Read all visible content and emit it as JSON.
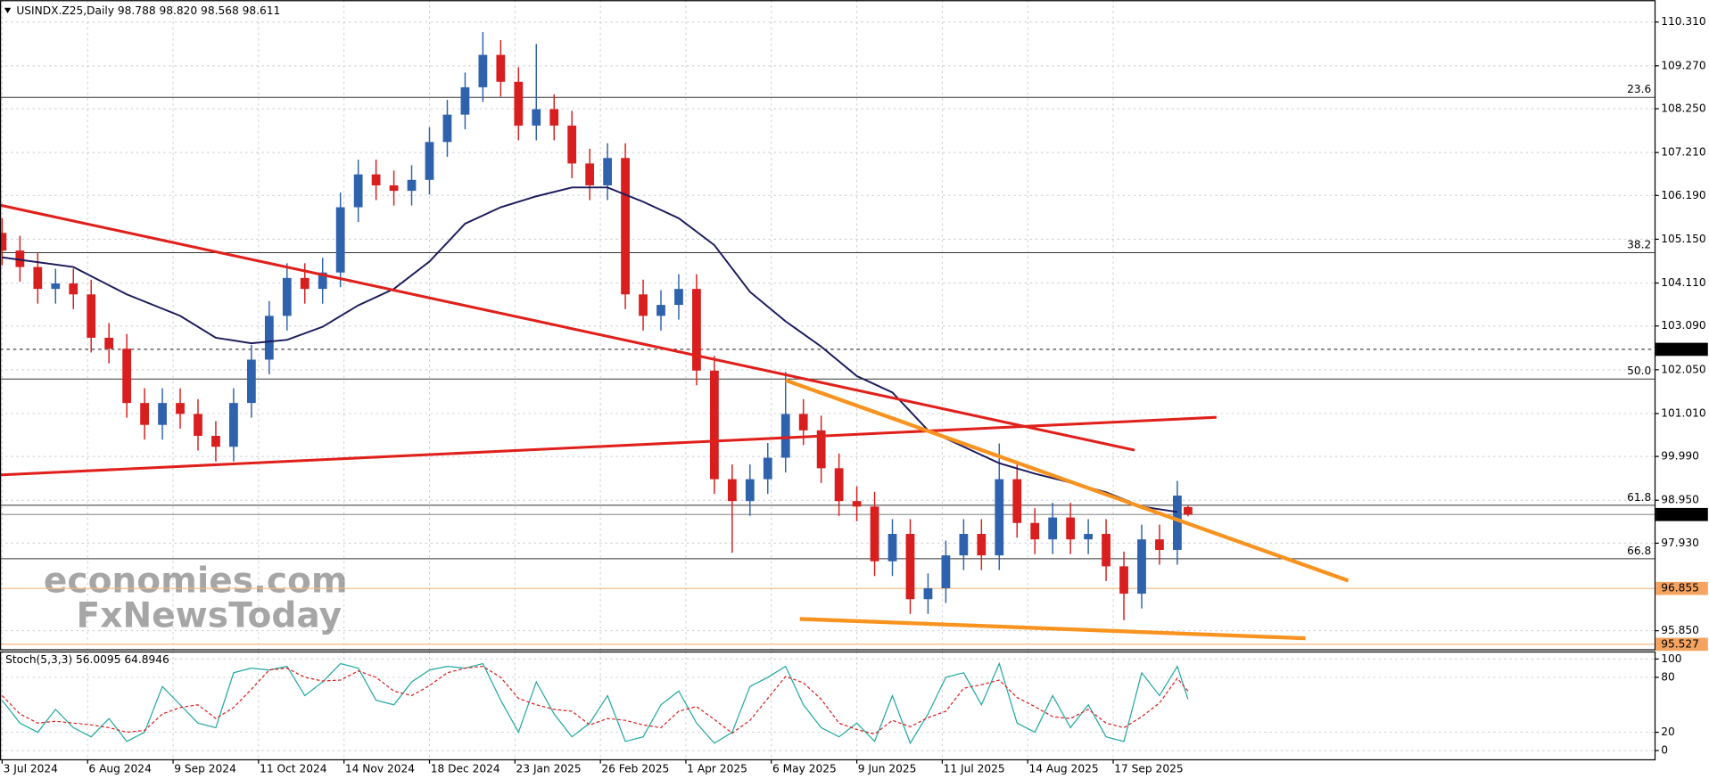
{
  "chart_data": {
    "type": "candlestick",
    "header": "USINDX.Z25,Daily  98.788 98.820 98.568 98.611",
    "up_color": "#2f62ad",
    "down_color": "#d81e1e",
    "grid": true,
    "xlim": [
      -0.6,
      464
    ],
    "xticks": [
      {
        "value": 0,
        "label": "3 Jul 2024"
      },
      {
        "value": 24,
        "label": "6 Aug 2024"
      },
      {
        "value": 48,
        "label": "9 Sep 2024"
      },
      {
        "value": 72,
        "label": "11 Oct 2024"
      },
      {
        "value": 96,
        "label": "14 Nov 2024"
      },
      {
        "value": 120,
        "label": "18 Dec 2024"
      },
      {
        "value": 144,
        "label": "23 Jan 2025"
      },
      {
        "value": 168,
        "label": "26 Feb 2025"
      },
      {
        "value": 192,
        "label": "1 Apr 2025"
      },
      {
        "value": 216,
        "label": "6 May 2025"
      },
      {
        "value": 240,
        "label": "9 Jun 2025"
      },
      {
        "value": 264,
        "label": "11 Jul 2025"
      },
      {
        "value": 288,
        "label": "14 Aug 2025"
      },
      {
        "value": 312,
        "label": "17 Sep 2025"
      }
    ],
    "ylim": [
      95.41,
      110.83
    ],
    "yticks": [
      {
        "value": 110.31,
        "label": "110.310"
      },
      {
        "value": 109.27,
        "label": "109.270"
      },
      {
        "value": 108.25,
        "label": "108.250"
      },
      {
        "value": 107.21,
        "label": "107.210"
      },
      {
        "value": 106.19,
        "label": "106.190"
      },
      {
        "value": 105.15,
        "label": "105.150"
      },
      {
        "value": 104.11,
        "label": "104.110"
      },
      {
        "value": 103.09,
        "label": "103.090"
      },
      {
        "value": 102.05,
        "label": "102.050"
      },
      {
        "value": 101.01,
        "label": "101.010"
      },
      {
        "value": 99.99,
        "label": "99.990"
      },
      {
        "value": 98.95,
        "label": "98.950"
      },
      {
        "value": 97.93,
        "label": "97.930"
      },
      {
        "value": 95.85,
        "label": "95.850"
      }
    ],
    "x": [
      0,
      5,
      10,
      15,
      20,
      25,
      30,
      35,
      40,
      45,
      50,
      55,
      60,
      65,
      70,
      75,
      80,
      85,
      90,
      95,
      100,
      105,
      110,
      115,
      120,
      125,
      130,
      135,
      140,
      145,
      150,
      155,
      160,
      165,
      170,
      175,
      180,
      185,
      190,
      195,
      200,
      205,
      210,
      215,
      220,
      225,
      230,
      235,
      240,
      245,
      250,
      255,
      260,
      265,
      270,
      275,
      280,
      285,
      290,
      295,
      300,
      305,
      310,
      315,
      320,
      325,
      330,
      333
    ],
    "open": [
      105.3,
      104.88,
      104.49,
      103.97,
      104.1,
      103.84,
      102.81,
      102.55,
      101.26,
      100.74,
      101.26,
      101.0,
      100.48,
      100.22,
      101.26,
      102.29,
      103.33,
      104.23,
      103.97,
      104.36,
      105.91,
      106.69,
      106.43,
      106.3,
      106.56,
      107.46,
      108.11,
      108.76,
      109.53,
      108.89,
      107.85,
      108.24,
      107.85,
      106.95,
      106.43,
      107.08,
      103.84,
      103.33,
      103.59,
      103.97,
      102.03,
      99.45,
      98.93,
      99.45,
      99.96,
      101.0,
      100.61,
      99.71,
      98.93,
      98.8,
      97.5,
      98.15,
      96.6,
      96.86,
      97.64,
      98.15,
      97.64,
      99.45,
      98.41,
      98.02,
      98.54,
      98.02,
      98.15,
      97.38,
      96.73,
      98.02,
      97.77,
      98.788
    ],
    "high": [
      105.65,
      105.23,
      104.84,
      104.45,
      104.45,
      104.19,
      103.16,
      102.9,
      101.61,
      101.61,
      101.61,
      101.35,
      100.83,
      101.61,
      102.64,
      103.68,
      104.58,
      104.58,
      104.71,
      106.26,
      107.04,
      107.04,
      106.78,
      106.91,
      107.81,
      108.46,
      109.11,
      110.07,
      109.88,
      109.24,
      109.79,
      108.59,
      108.2,
      107.3,
      107.43,
      107.43,
      104.19,
      103.94,
      104.32,
      104.32,
      102.38,
      99.8,
      99.8,
      100.31,
      102.0,
      101.35,
      100.96,
      100.06,
      99.28,
      99.15,
      98.5,
      98.5,
      97.21,
      97.99,
      98.5,
      98.5,
      100.3,
      99.8,
      98.76,
      98.89,
      98.89,
      98.5,
      98.5,
      97.73,
      98.37,
      98.37,
      99.41,
      98.82
    ],
    "low": [
      104.53,
      104.14,
      103.62,
      103.62,
      103.49,
      102.46,
      102.2,
      100.91,
      100.39,
      100.39,
      100.65,
      100.13,
      99.87,
      99.87,
      100.91,
      101.94,
      102.98,
      103.62,
      103.62,
      104.01,
      105.56,
      106.08,
      105.95,
      105.95,
      106.21,
      107.11,
      107.76,
      108.41,
      108.54,
      107.5,
      107.5,
      107.5,
      106.6,
      106.08,
      106.08,
      103.49,
      102.98,
      102.98,
      103.24,
      101.68,
      99.1,
      97.7,
      98.58,
      99.1,
      99.61,
      100.26,
      99.36,
      98.58,
      98.45,
      97.15,
      97.15,
      96.25,
      96.25,
      96.51,
      97.29,
      97.29,
      97.29,
      98.06,
      97.67,
      97.67,
      97.67,
      97.67,
      97.03,
      96.1,
      96.38,
      97.42,
      97.42,
      98.568
    ],
    "close": [
      104.88,
      104.49,
      103.97,
      104.1,
      103.84,
      102.81,
      102.55,
      101.26,
      100.74,
      101.26,
      101.0,
      100.48,
      100.22,
      101.26,
      102.29,
      103.33,
      104.23,
      103.97,
      104.36,
      105.91,
      106.69,
      106.43,
      106.3,
      106.56,
      107.46,
      108.11,
      108.76,
      109.53,
      108.89,
      107.85,
      108.24,
      107.85,
      106.95,
      106.43,
      107.08,
      103.84,
      103.33,
      103.59,
      103.97,
      102.03,
      99.45,
      98.93,
      99.45,
      99.96,
      101.0,
      100.61,
      99.71,
      98.93,
      98.8,
      97.5,
      98.15,
      96.6,
      96.86,
      97.64,
      98.15,
      97.64,
      99.45,
      98.41,
      98.02,
      98.54,
      98.02,
      98.15,
      97.38,
      96.73,
      98.02,
      97.77,
      99.06,
      98.611
    ],
    "moving_average": {
      "color": "#1b1b5c",
      "x": [
        0,
        20,
        35,
        50,
        60,
        70,
        80,
        90,
        100,
        110,
        120,
        130,
        140,
        150,
        160,
        170,
        180,
        190,
        200,
        210,
        220,
        230,
        240,
        250,
        260,
        270,
        280,
        290,
        300,
        310,
        320,
        330
      ],
      "values": [
        104.72,
        104.49,
        103.84,
        103.33,
        102.81,
        102.68,
        102.76,
        103.07,
        103.58,
        103.97,
        104.62,
        105.52,
        105.91,
        106.17,
        106.38,
        106.38,
        106.04,
        105.65,
        105.01,
        103.9,
        103.2,
        102.6,
        101.9,
        101.51,
        100.61,
        100.22,
        99.83,
        99.58,
        99.37,
        99.14,
        98.8,
        98.67
      ]
    },
    "trendlines": [
      {
        "color": "#e0201b",
        "width": 2.5,
        "x": [
          -0.6,
          318
        ],
        "values": [
          105.96,
          100.14
        ]
      },
      {
        "color": "#e0201b",
        "width": 2.5,
        "x": [
          -0.6,
          341
        ],
        "values": [
          99.55,
          100.92
        ]
      },
      {
        "color": "#f7931e",
        "width": 3.5,
        "x": [
          220,
          378
        ],
        "values": [
          101.8,
          97.04
        ]
      },
      {
        "color": "#f7931e",
        "width": 3.5,
        "x": [
          224,
          366
        ],
        "values": [
          96.13,
          95.67
        ]
      }
    ],
    "levels": [
      {
        "value": 108.52,
        "label": "23.6"
      },
      {
        "value": 104.83,
        "label": "38.2"
      },
      {
        "value": 101.83,
        "label": "50.0"
      },
      {
        "value": 98.83,
        "label": "61.8"
      },
      {
        "value": 97.56,
        "label": "66.8"
      }
    ],
    "price_lines": [
      {
        "value": 102.535,
        "style": "dotted",
        "color": "#333333",
        "box": "#000000"
      },
      {
        "value": 98.611,
        "style": "solid",
        "color": "#999999",
        "box": "#000000"
      },
      {
        "value": 96.855,
        "style": "solid",
        "color": "#f6b97a",
        "box": "#f4a460"
      },
      {
        "value": 95.527,
        "style": "solid",
        "color": "#f6b97a",
        "box": "#f4a460"
      }
    ],
    "watermark": [
      "economies.com",
      "FxNewsToday"
    ],
    "oscillator": {
      "title": "Stoch(5,3,3) 56.0095 64.8946",
      "ylim": [
        -9.5,
        108.3
      ],
      "yticks": [
        100,
        80,
        20,
        0
      ],
      "k_color": "#20a8a0",
      "d_color": "#d81e1e",
      "k_values": [
        55,
        30,
        20,
        45,
        25,
        15,
        35,
        10,
        20,
        70,
        50,
        30,
        25,
        85,
        90,
        88,
        92,
        60,
        75,
        95,
        90,
        55,
        50,
        75,
        88,
        92,
        90,
        95,
        55,
        20,
        75,
        40,
        15,
        30,
        60,
        10,
        15,
        50,
        65,
        30,
        8,
        20,
        70,
        80,
        92,
        50,
        25,
        15,
        30,
        10,
        60,
        8,
        40,
        80,
        85,
        50,
        95,
        30,
        20,
        60,
        25,
        50,
        15,
        10,
        85,
        60,
        92,
        56.0095
      ],
      "d_values": [
        60,
        40,
        30,
        32,
        30,
        28,
        25,
        20,
        22,
        40,
        47,
        50,
        35,
        47,
        67,
        88,
        90,
        80,
        76,
        77,
        87,
        80,
        65,
        60,
        71,
        85,
        90,
        92,
        80,
        57,
        50,
        45,
        43,
        28,
        35,
        33,
        28,
        25,
        43,
        48,
        34,
        19,
        33,
        57,
        81,
        74,
        56,
        30,
        23,
        18,
        33,
        26,
        36,
        43,
        68,
        72,
        77,
        58,
        48,
        37,
        35,
        45,
        30,
        25,
        37,
        52,
        79,
        64.8946
      ]
    }
  }
}
